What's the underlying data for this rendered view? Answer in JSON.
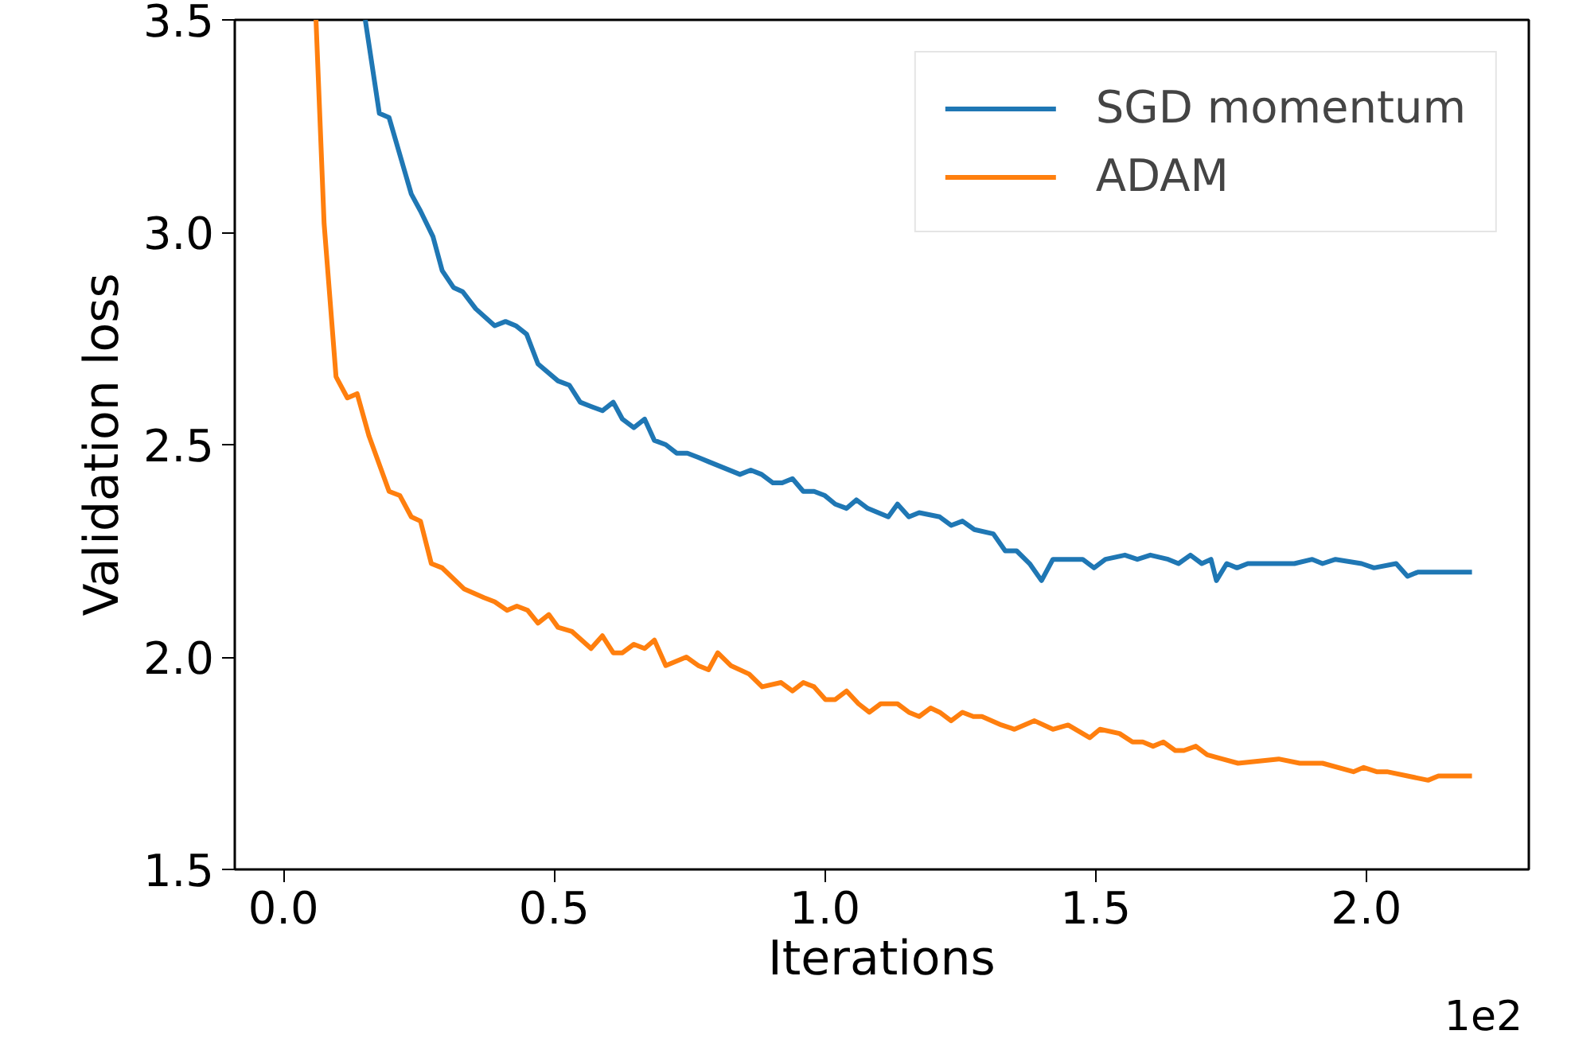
{
  "chart_data": {
    "type": "line",
    "xlabel": "Iterations",
    "ylabel": "Validation loss",
    "annotations": [
      "1e2"
    ],
    "xlim": [
      -0.09,
      2.3
    ],
    "ylim": [
      1.5,
      3.5
    ],
    "xticks": [
      {
        "value": 0,
        "label": "0.0"
      },
      0.5,
      {
        "value": 1,
        "label": "1.0"
      },
      1.5,
      {
        "value": 2,
        "label": "2.0"
      }
    ],
    "yticks": [
      1.5,
      {
        "value": 2,
        "label": "2.0"
      },
      2.5,
      {
        "value": 3,
        "label": "3.0"
      },
      3.5
    ],
    "grid": false,
    "legend": "top right",
    "marker": "none",
    "line_style": "solid",
    "series": [
      {
        "name": "SGD momentum",
        "color": "#1f77b4",
        "x": [
          0.151,
          0.177,
          0.195,
          0.236,
          0.253,
          0.276,
          0.293,
          0.314,
          0.331,
          0.355,
          0.39,
          0.41,
          0.429,
          0.449,
          0.47,
          0.507,
          0.528,
          0.548,
          0.568,
          0.589,
          0.609,
          0.626,
          0.647,
          0.667,
          0.685,
          0.706,
          0.726,
          0.746,
          0.766,
          0.785,
          0.843,
          0.863,
          0.883,
          0.904,
          0.921,
          0.94,
          0.96,
          0.98,
          1.0,
          1.019,
          1.04,
          1.058,
          1.079,
          1.117,
          1.134,
          1.155,
          1.174,
          1.212,
          1.233,
          1.254,
          1.276,
          1.311,
          1.333,
          1.354,
          1.378,
          1.4,
          1.421,
          1.449,
          1.476,
          1.497,
          1.518,
          1.554,
          1.577,
          1.601,
          1.634,
          1.653,
          1.675,
          1.696,
          1.713,
          1.723,
          1.742,
          1.761,
          1.781,
          1.838,
          1.867,
          1.9,
          1.919,
          1.943,
          1.991,
          2.014,
          2.055,
          2.076,
          2.095,
          2.133,
          2.171,
          2.195
        ],
        "values": [
          3.5,
          3.28,
          3.27,
          3.09,
          3.05,
          2.99,
          2.91,
          2.87,
          2.86,
          2.82,
          2.78,
          2.79,
          2.78,
          2.76,
          2.69,
          2.65,
          2.64,
          2.6,
          2.59,
          2.58,
          2.6,
          2.56,
          2.54,
          2.56,
          2.51,
          2.5,
          2.48,
          2.48,
          2.47,
          2.46,
          2.43,
          2.44,
          2.43,
          2.41,
          2.41,
          2.42,
          2.39,
          2.39,
          2.38,
          2.36,
          2.35,
          2.37,
          2.35,
          2.33,
          2.36,
          2.33,
          2.34,
          2.33,
          2.31,
          2.32,
          2.3,
          2.29,
          2.25,
          2.25,
          2.22,
          2.18,
          2.23,
          2.23,
          2.23,
          2.21,
          2.23,
          2.24,
          2.23,
          2.24,
          2.23,
          2.22,
          2.24,
          2.22,
          2.23,
          2.18,
          2.22,
          2.21,
          2.22,
          2.22,
          2.22,
          2.23,
          2.22,
          2.23,
          2.22,
          2.21,
          2.22,
          2.19,
          2.2,
          2.2,
          2.2,
          2.2
        ]
      },
      {
        "name": "ADAM",
        "color": "#ff7f0e",
        "x": [
          0.06,
          0.075,
          0.097,
          0.118,
          0.136,
          0.158,
          0.195,
          0.215,
          0.236,
          0.253,
          0.273,
          0.293,
          0.334,
          0.37,
          0.39,
          0.413,
          0.431,
          0.451,
          0.47,
          0.49,
          0.507,
          0.533,
          0.568,
          0.589,
          0.609,
          0.626,
          0.647,
          0.667,
          0.685,
          0.706,
          0.744,
          0.766,
          0.785,
          0.802,
          0.826,
          0.86,
          0.884,
          0.919,
          0.94,
          0.96,
          0.98,
          1.001,
          1.019,
          1.04,
          1.062,
          1.082,
          1.103,
          1.134,
          1.155,
          1.174,
          1.195,
          1.212,
          1.233,
          1.254,
          1.274,
          1.29,
          1.326,
          1.35,
          1.387,
          1.421,
          1.449,
          1.489,
          1.508,
          1.544,
          1.568,
          1.587,
          1.606,
          1.625,
          1.647,
          1.663,
          1.685,
          1.706,
          1.734,
          1.763,
          1.838,
          1.877,
          1.919,
          1.976,
          1.995,
          2.019,
          2.038,
          2.076,
          2.114,
          2.133,
          2.195
        ],
        "values": [
          3.5,
          3.02,
          2.66,
          2.61,
          2.62,
          2.52,
          2.39,
          2.38,
          2.33,
          2.32,
          2.22,
          2.21,
          2.16,
          2.14,
          2.13,
          2.11,
          2.12,
          2.11,
          2.08,
          2.1,
          2.07,
          2.06,
          2.02,
          2.05,
          2.01,
          2.01,
          2.03,
          2.02,
          2.04,
          1.98,
          2.0,
          1.98,
          1.97,
          2.01,
          1.98,
          1.96,
          1.93,
          1.94,
          1.92,
          1.94,
          1.93,
          1.9,
          1.9,
          1.92,
          1.89,
          1.87,
          1.89,
          1.89,
          1.87,
          1.86,
          1.88,
          1.87,
          1.85,
          1.87,
          1.86,
          1.86,
          1.84,
          1.83,
          1.85,
          1.83,
          1.84,
          1.81,
          1.83,
          1.82,
          1.8,
          1.8,
          1.79,
          1.8,
          1.78,
          1.78,
          1.79,
          1.77,
          1.76,
          1.75,
          1.76,
          1.75,
          1.75,
          1.73,
          1.74,
          1.73,
          1.73,
          1.72,
          1.71,
          1.72,
          1.72
        ]
      }
    ]
  }
}
